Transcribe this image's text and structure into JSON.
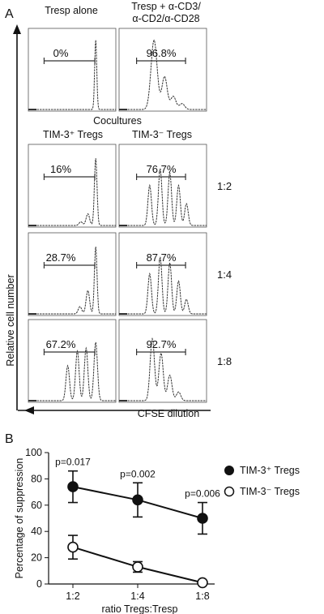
{
  "panel_a": {
    "label": "A",
    "header_left": "Tresp alone",
    "header_right_lines": [
      "Tresp + α-CD3/",
      "α-CD2/α-CD28"
    ],
    "cocultures_title": "Cocultures",
    "col_left_title": "TIM-3⁺ Tregs",
    "col_right_title": "TIM-3⁻ Tregs",
    "y_axis_label": "Relative cell number",
    "x_axis_label": "CFSE dilution",
    "rows": [
      {
        "ratio": "",
        "left_pct": "0%",
        "right_pct": "96.8%"
      },
      {
        "ratio": "1:2",
        "left_pct": "16%",
        "right_pct": "76.7%"
      },
      {
        "ratio": "1:4",
        "left_pct": "28.7%",
        "right_pct": "87.7%"
      },
      {
        "ratio": "1:8",
        "left_pct": "67.2%",
        "right_pct": "92.7%"
      }
    ]
  },
  "panel_b": {
    "label": "B",
    "legend_pos_label": "TIM-3⁺ Tregs",
    "legend_neg_label": "TIM-3⁻ Tregs"
  },
  "chart_data": {
    "type": "line",
    "categories": [
      "1:2",
      "1:4",
      "1:8"
    ],
    "xlabel": "ratio Tregs:Tresp",
    "ylabel": "Percentage of suppression",
    "ylim": [
      0,
      100
    ],
    "yticks": [
      0,
      20,
      40,
      60,
      80,
      100
    ],
    "legend": "right",
    "series": [
      {
        "name": "TIM-3⁺ Tregs",
        "values": [
          74,
          64,
          50
        ],
        "errors": [
          12,
          13,
          12
        ],
        "marker": "filled-circle"
      },
      {
        "name": "TIM-3⁻ Tregs",
        "values": [
          28,
          13,
          1
        ],
        "errors": [
          9,
          4,
          1
        ],
        "marker": "open-circle"
      }
    ],
    "annotations": [
      "p=0.017",
      "p=0.002",
      "p=0.006"
    ]
  }
}
